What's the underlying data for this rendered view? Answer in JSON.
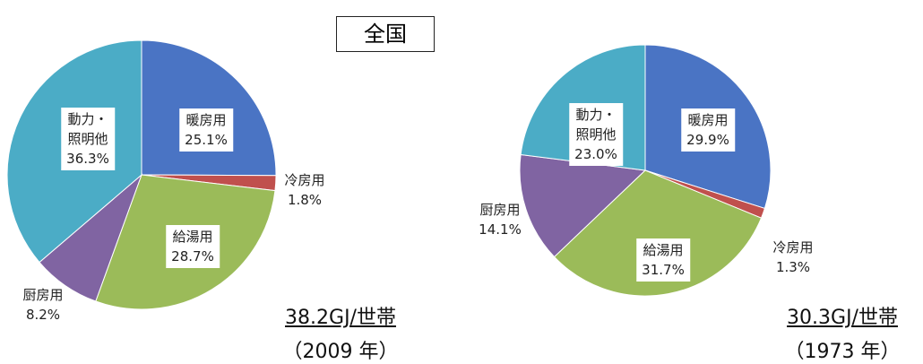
{
  "title": "全国",
  "chart_data": [
    {
      "type": "pie",
      "subtitle": "38.2GJ/世帯",
      "caption": "（2009 年）",
      "categories": [
        "暖房用",
        "冷房用",
        "給湯用",
        "厨房用",
        "動力・照明他"
      ],
      "values": [
        25.1,
        1.8,
        28.7,
        8.2,
        36.3
      ],
      "value_labels": [
        "25.1%",
        "1.8%",
        "28.7%",
        "8.2%",
        "36.3%"
      ],
      "colors": [
        "#4a74c4",
        "#c0504d",
        "#9bbb59",
        "#8064a2",
        "#4bacc6"
      ]
    },
    {
      "type": "pie",
      "subtitle": "30.3GJ/世帯",
      "caption": "（1973 年）",
      "categories": [
        "暖房用",
        "冷房用",
        "給湯用",
        "厨房用",
        "動力・照明他"
      ],
      "values": [
        29.9,
        1.3,
        31.7,
        14.1,
        23.0
      ],
      "value_labels": [
        "29.9%",
        "1.3%",
        "31.7%",
        "14.1%",
        "23.0%"
      ],
      "colors": [
        "#4a74c4",
        "#c0504d",
        "#9bbb59",
        "#8064a2",
        "#4bacc6"
      ]
    }
  ]
}
